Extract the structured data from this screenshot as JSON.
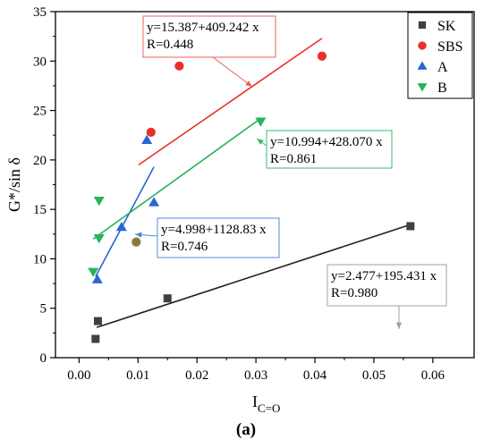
{
  "chart_data": {
    "type": "scatter",
    "title": "",
    "xlabel": "I",
    "xlabel_sub": "C=O",
    "ylabel": "G*/sin δ",
    "xlim": [
      -0.004,
      0.067
    ],
    "ylim": [
      0,
      35
    ],
    "xticks": [
      "0.00",
      "0.01",
      "0.02",
      "0.03",
      "0.04",
      "0.05",
      "0.06"
    ],
    "yticks": [
      "0",
      "5",
      "10",
      "15",
      "20",
      "25",
      "30",
      "35"
    ],
    "grid": false,
    "legend_position": "top-right",
    "series": [
      {
        "name": "SK",
        "marker": "square",
        "color": "#404040",
        "points": [
          [
            0.0028,
            1.9
          ],
          [
            0.0032,
            3.7
          ],
          [
            0.015,
            6.0
          ],
          [
            0.0562,
            13.3
          ]
        ],
        "fit": {
          "x": [
            0.003,
            0.0562
          ],
          "y": [
            3.06,
            13.46
          ]
        },
        "annotation": {
          "lines": [
            "y=2.477+195.431 x",
            "R=0.980"
          ],
          "box_color": "#a0a0a0"
        }
      },
      {
        "name": "SBS",
        "marker": "circle",
        "color": "#e8302c",
        "points": [
          [
            0.0122,
            22.8
          ],
          [
            0.017,
            29.5
          ],
          [
            0.0412,
            30.5
          ]
        ],
        "fit": {
          "x": [
            0.0101,
            0.0412
          ],
          "y": [
            19.5,
            32.3
          ]
        },
        "annotation": {
          "lines": [
            "y=15.387+409.242 x",
            "R=0.448"
          ],
          "box_color": "#e86060"
        }
      },
      {
        "name": "A",
        "marker": "triangle-up",
        "color": "#2a66d0",
        "points": [
          [
            0.0031,
            7.9
          ],
          [
            0.0072,
            13.2
          ],
          [
            0.0115,
            22.0
          ],
          [
            0.0127,
            15.7
          ]
        ],
        "fit": {
          "x": [
            0.0028,
            0.0127
          ],
          "y": [
            8.2,
            19.3
          ]
        },
        "annotation": {
          "lines": [
            "y=4.998+1128.83 x",
            "R=0.746"
          ],
          "box_color": "#5088d8"
        }
      },
      {
        "name": "B",
        "marker": "triangle-down",
        "color": "#27b35a",
        "points": [
          [
            0.0024,
            8.7
          ],
          [
            0.0034,
            12.1
          ],
          [
            0.0034,
            15.9
          ],
          [
            0.0308,
            23.9
          ]
        ],
        "fit": {
          "x": [
            0.0024,
            0.0308
          ],
          "y": [
            12.0,
            24.2
          ]
        },
        "annotation": {
          "lines": [
            "y=10.994+428.070 x",
            "R=0.861"
          ],
          "box_color": "#3cb870"
        }
      }
    ],
    "extra_points": [
      {
        "x": 0.0097,
        "y": 11.7,
        "marker": "circle",
        "color": "#8c7a3c"
      }
    ]
  },
  "caption": {
    "text": "(a)"
  }
}
